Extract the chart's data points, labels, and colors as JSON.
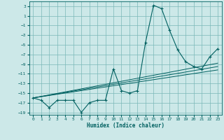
{
  "xlabel": "Humidex (Indice chaleur)",
  "ylabel": "",
  "bg_color": "#cce8e8",
  "grid_color": "#7ab8b8",
  "line_color": "#006060",
  "xlim": [
    -0.5,
    23.5
  ],
  "ylim": [
    -19.5,
    4.0
  ],
  "yticks": [
    3,
    1,
    -1,
    -3,
    -5,
    -7,
    -9,
    -11,
    -13,
    -15,
    -17,
    -19
  ],
  "xticks": [
    0,
    1,
    2,
    3,
    4,
    5,
    6,
    7,
    8,
    9,
    10,
    11,
    12,
    13,
    14,
    15,
    16,
    17,
    18,
    19,
    20,
    21,
    22,
    23
  ],
  "main_x": [
    0,
    1,
    2,
    3,
    4,
    5,
    6,
    7,
    8,
    9,
    10,
    11,
    12,
    13,
    14,
    15,
    16,
    17,
    18,
    19,
    20,
    21,
    22,
    23
  ],
  "main_y": [
    -16.0,
    -16.5,
    -18.0,
    -16.5,
    -16.5,
    -16.5,
    -19.0,
    -17.0,
    -16.5,
    -16.5,
    -10.0,
    -14.5,
    -15.0,
    -14.5,
    -4.5,
    3.2,
    2.5,
    -2.0,
    -6.0,
    -8.5,
    -9.5,
    -10.0,
    -7.5,
    -5.8
  ],
  "line1_x": [
    0,
    23
  ],
  "line1_y": [
    -16.0,
    -9.5
  ],
  "line2_x": [
    0,
    23
  ],
  "line2_y": [
    -16.0,
    -8.8
  ],
  "line3_x": [
    0,
    23
  ],
  "line3_y": [
    -16.0,
    -10.2
  ]
}
